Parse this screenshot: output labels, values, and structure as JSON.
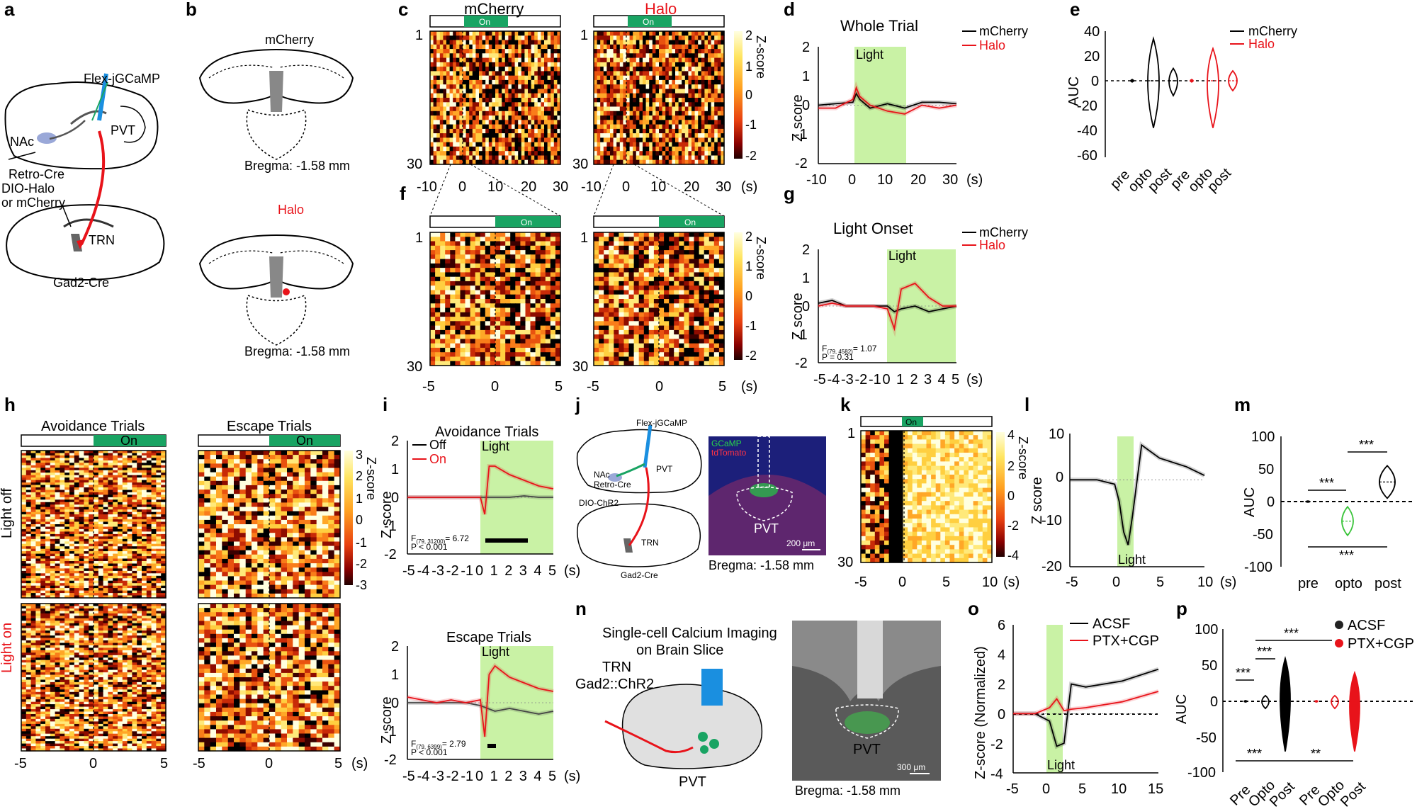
{
  "panel_letters": [
    "a",
    "b",
    "c",
    "d",
    "e",
    "f",
    "g",
    "h",
    "i",
    "j",
    "k",
    "l",
    "m",
    "n",
    "o",
    "p"
  ],
  "colors": {
    "mcherry": "#000000",
    "halo": "#e8131a",
    "light": "#c9f2a5",
    "on_bar": "#19a463",
    "green_trace": "#3bc43b"
  },
  "common": {
    "on": "On",
    "light": "Light",
    "zscore": "Z score",
    "seconds": "(s)",
    "auc": "AUC",
    "zscore_cbar": "Z-score",
    "bregma": "Bregma: -1.58 mm"
  },
  "a": {
    "flex": "Flex-jGCaMP",
    "pvt": "PVT",
    "nac": "NAc",
    "retro": "Retro-Cre",
    "dio1": "DIO-Halo",
    "dio2": "or mCherry",
    "trn": "TRN",
    "gad2": "Gad2-Cre"
  },
  "b": {
    "top_label": "mCherry",
    "bottom_label": "Halo"
  },
  "c": {
    "title_left": "mCherry",
    "title_right": "Halo",
    "row_top": "1",
    "row_bottom": "30",
    "xticks": [
      "-10",
      "0",
      "10",
      "20",
      "30"
    ],
    "cbar_ticks": [
      "2",
      "1",
      "0",
      "-1",
      "-2"
    ]
  },
  "d": {
    "title": "Whole Trial",
    "legend": [
      "mCherry",
      "Halo"
    ],
    "yticks": [
      "2",
      "1",
      "0",
      "-1",
      "-2"
    ],
    "xticks": [
      "-10",
      "0",
      "10",
      "20",
      "30"
    ]
  },
  "e": {
    "legend": [
      "mCherry",
      "Halo"
    ],
    "yticks": [
      "40",
      "20",
      "0",
      "-20",
      "-40",
      "-60"
    ],
    "xticks": [
      "pre",
      "opto",
      "post",
      "pre",
      "opto",
      "post"
    ]
  },
  "f": {
    "row_top": "1",
    "row_bottom": "30",
    "xticks": [
      "-5",
      "0",
      "5"
    ],
    "cbar_ticks": [
      "2",
      "1",
      "0",
      "-1",
      "-2"
    ]
  },
  "g": {
    "title": "Light Onset",
    "legend": [
      "mCherry",
      "Halo"
    ],
    "yticks": [
      "2",
      "1",
      "0",
      "-1",
      "-2"
    ],
    "xticks": [
      "-5",
      "-4",
      "-3",
      "-2",
      "-1",
      "0",
      "1",
      "2",
      "3",
      "4",
      "5"
    ],
    "stat_f": "F",
    "stat_f_sub": "(79, 4582)",
    "stat_f_val": "= 1.07",
    "stat_p": "P = 0.31"
  },
  "h": {
    "col1": "Avoidance Trials",
    "col2": "Escape Trials",
    "row1": "Light off",
    "row2": "Light on",
    "xticks": [
      "-5",
      "0",
      "5"
    ],
    "cbar_ticks": [
      "3",
      "2",
      "1",
      "0",
      "-1",
      "-2",
      "-3"
    ]
  },
  "i": {
    "title_top": "Avoidance Trials",
    "title_bottom": "Escape Trials",
    "legend": [
      "Off",
      "On"
    ],
    "yticks": [
      "2",
      "1",
      "0",
      "-1",
      "-2"
    ],
    "xticks": [
      "-5",
      "-4",
      "-3",
      "-2",
      "-1",
      "0",
      "1",
      "2",
      "3",
      "4",
      "5"
    ],
    "stat_top_f": "F",
    "stat_top_sub": "(79, 31200)",
    "stat_top_val": "= 6.72",
    "stat_top_p": "P < 0.001",
    "stat_bot_f": "F",
    "stat_bot_sub": "(79, 6399)",
    "stat_bot_val": "= 2.79",
    "stat_bot_p": "P < 0.001"
  },
  "j": {
    "flex": "Flex-jGCaMP",
    "pvt": "PVT",
    "nac": "NAc",
    "retro": "Retro-Cre",
    "dio": "DIO-ChR2",
    "trn": "TRN",
    "gad2": "Gad2-Cre",
    "gcamp": "GCaMP",
    "tdtomato": "tdTomato",
    "pvt_label": "PVT",
    "scale": "200 μm"
  },
  "k": {
    "row_top": "1",
    "row_bottom": "30",
    "xticks": [
      "-5",
      "0",
      "5",
      "10"
    ],
    "cbar_ticks": [
      "4",
      "2",
      "0",
      "-2",
      "-4"
    ]
  },
  "l": {
    "yticks": [
      "10",
      "0",
      "-10",
      "-20"
    ],
    "xticks": [
      "-5",
      "0",
      "5",
      "10"
    ]
  },
  "m": {
    "yticks": [
      "100",
      "50",
      "0",
      "-50",
      "-100"
    ],
    "xticks": [
      "pre",
      "opto",
      "post"
    ],
    "sig": [
      "***",
      "***",
      "***"
    ]
  },
  "n": {
    "title1": "Single-cell Calcium Imaging",
    "title2": "on Brain Slice",
    "trn": "TRN",
    "gad2chr2": "Gad2::ChR2",
    "pvt": "PVT",
    "pvt_label": "PVT",
    "scale": "300 μm"
  },
  "o": {
    "ylabel": "Z-score (Normalized)",
    "legend": [
      "ACSF",
      "PTX+CGP"
    ],
    "yticks": [
      "6",
      "4",
      "2",
      "0",
      "-2",
      "-4"
    ],
    "xticks": [
      "-5",
      "0",
      "5",
      "10",
      "15"
    ]
  },
  "p": {
    "legend": [
      "ACSF",
      "PTX+CGP"
    ],
    "yticks": [
      "100",
      "50",
      "0",
      "-50",
      "-100"
    ],
    "xticks": [
      "Pre",
      "Opto",
      "Post",
      "Pre",
      "Opto",
      "Post"
    ],
    "sig": [
      "***",
      "***",
      "***",
      "***",
      "**"
    ]
  },
  "chart_data": [
    {
      "panel": "d",
      "type": "line",
      "title": "Whole Trial",
      "xlabel": "(s)",
      "ylabel": "Z score",
      "xlim": [
        -10,
        30
      ],
      "ylim": [
        -2,
        2
      ],
      "light_interval": [
        0,
        15
      ],
      "series": [
        {
          "name": "mCherry",
          "x": [
            -10,
            -5,
            0,
            1,
            2,
            5,
            10,
            15,
            20,
            25,
            30
          ],
          "values": [
            0,
            0.05,
            0.1,
            0.4,
            0.2,
            -0.1,
            0.05,
            -0.1,
            0.1,
            0.1,
            0.05
          ]
        },
        {
          "name": "Halo",
          "x": [
            -10,
            -5,
            0,
            1,
            2,
            5,
            10,
            15,
            20,
            25,
            30
          ],
          "values": [
            -0.1,
            -0.1,
            0.2,
            0.6,
            0.3,
            0.0,
            -0.2,
            -0.3,
            0.0,
            -0.1,
            0.0
          ]
        }
      ]
    },
    {
      "panel": "e",
      "type": "violin",
      "ylabel": "AUC",
      "ylim": [
        -60,
        40
      ],
      "categories": [
        "pre",
        "opto",
        "post",
        "pre",
        "opto",
        "post"
      ],
      "series": [
        {
          "name": "mCherry",
          "medians": [
            0,
            0,
            0
          ]
        },
        {
          "name": "Halo",
          "medians": [
            0,
            0,
            0
          ]
        }
      ]
    },
    {
      "panel": "g",
      "type": "line",
      "title": "Light Onset",
      "xlabel": "(s)",
      "ylabel": "Z score",
      "xlim": [
        -5,
        5
      ],
      "ylim": [
        -2,
        2
      ],
      "light_interval": [
        0,
        5
      ],
      "series": [
        {
          "name": "mCherry",
          "x": [
            -5,
            -4,
            -3,
            -2,
            -1,
            0,
            0.5,
            1,
            2,
            3,
            4,
            5
          ],
          "values": [
            0.1,
            0.2,
            0.0,
            0.0,
            0.0,
            0.0,
            -0.2,
            -0.1,
            0.0,
            -0.2,
            -0.1,
            0.0
          ]
        },
        {
          "name": "Halo",
          "x": [
            -5,
            -4,
            -3,
            -2,
            -1,
            0,
            0.5,
            1,
            2,
            3,
            4,
            5
          ],
          "values": [
            0.0,
            0.1,
            0.0,
            0.0,
            0.0,
            -0.1,
            -0.8,
            0.6,
            0.8,
            0.3,
            0.0,
            0.0
          ]
        }
      ]
    },
    {
      "panel": "i-top",
      "type": "line",
      "title": "Avoidance Trials",
      "xlabel": "(s)",
      "ylabel": "Z score",
      "xlim": [
        -5,
        5
      ],
      "ylim": [
        -2,
        2
      ],
      "light_interval": [
        0,
        5
      ],
      "series": [
        {
          "name": "Off",
          "x": [
            -5,
            -4,
            -3,
            -2,
            -1,
            0,
            0.5,
            1,
            2,
            3,
            4,
            5
          ],
          "values": [
            0,
            0,
            0,
            0,
            0,
            0,
            0,
            0,
            0,
            0.05,
            0,
            0
          ]
        },
        {
          "name": "On",
          "x": [
            -5,
            -4,
            -3,
            -2,
            -1,
            0,
            0.3,
            0.6,
            1,
            2,
            3,
            4,
            5
          ],
          "values": [
            0,
            0,
            0,
            0,
            0,
            0,
            -0.6,
            1.1,
            1.1,
            0.8,
            0.6,
            0.4,
            0.3
          ]
        }
      ]
    },
    {
      "panel": "i-bottom",
      "type": "line",
      "title": "Escape Trials",
      "xlabel": "(s)",
      "ylabel": "Z score",
      "xlim": [
        -5,
        5
      ],
      "ylim": [
        -2,
        2
      ],
      "light_interval": [
        0,
        5
      ],
      "series": [
        {
          "name": "Off",
          "x": [
            -5,
            -4,
            -3,
            -2,
            -1,
            0,
            1,
            2,
            3,
            4,
            5
          ],
          "values": [
            0,
            0,
            0,
            0,
            0,
            -0.1,
            -0.3,
            -0.2,
            -0.3,
            -0.4,
            -0.3
          ]
        },
        {
          "name": "On",
          "x": [
            -5,
            -4,
            -3,
            -2,
            -1,
            0,
            0.3,
            0.6,
            1,
            2,
            3,
            4,
            5
          ],
          "values": [
            0.2,
            0.1,
            0.0,
            0.1,
            0.0,
            0.1,
            -1.2,
            1.0,
            1.3,
            0.9,
            0.7,
            0.5,
            0.4
          ]
        }
      ]
    },
    {
      "panel": "l",
      "type": "line",
      "xlabel": "(s)",
      "ylabel": "Z score",
      "xlim": [
        -5,
        10
      ],
      "ylim": [
        -20,
        10
      ],
      "light_interval": [
        0,
        1
      ],
      "series": [
        {
          "name": "trace",
          "x": [
            -5,
            -2,
            0,
            0.5,
            1,
            1.5,
            2,
            3,
            5,
            8,
            10
          ],
          "values": [
            0,
            0,
            -1,
            -5,
            -12,
            -15,
            -8,
            8,
            5,
            3,
            1
          ]
        }
      ]
    },
    {
      "panel": "m",
      "type": "violin",
      "ylabel": "AUC",
      "ylim": [
        -100,
        100
      ],
      "categories": [
        "pre",
        "opto",
        "post"
      ],
      "medians": [
        0,
        -30,
        30
      ]
    },
    {
      "panel": "o",
      "type": "line",
      "xlabel": "(s)",
      "ylabel": "Z-score (Normalized)",
      "xlim": [
        -5,
        15
      ],
      "ylim": [
        -4,
        6
      ],
      "light_interval": [
        0,
        1
      ],
      "series": [
        {
          "name": "ACSF",
          "x": [
            -5,
            -2,
            0,
            1,
            2,
            3,
            5,
            10,
            15
          ],
          "values": [
            0,
            0,
            -0.5,
            -2.2,
            -2.0,
            2.0,
            1.8,
            2.2,
            3.0
          ]
        },
        {
          "name": "PTX+CGP",
          "x": [
            -5,
            -2,
            0,
            1,
            2,
            3,
            5,
            10,
            15
          ],
          "values": [
            0,
            0,
            0.4,
            1.0,
            0.2,
            0.3,
            0.4,
            0.8,
            1.5
          ]
        }
      ]
    },
    {
      "panel": "p",
      "type": "violin",
      "ylabel": "AUC",
      "ylim": [
        -100,
        100
      ],
      "categories": [
        "Pre",
        "Opto",
        "Post",
        "Pre",
        "Opto",
        "Post"
      ],
      "series": [
        {
          "name": "ACSF",
          "medians": [
            0,
            0,
            10
          ]
        },
        {
          "name": "PTX+CGP",
          "medians": [
            0,
            0,
            0
          ]
        }
      ]
    }
  ]
}
